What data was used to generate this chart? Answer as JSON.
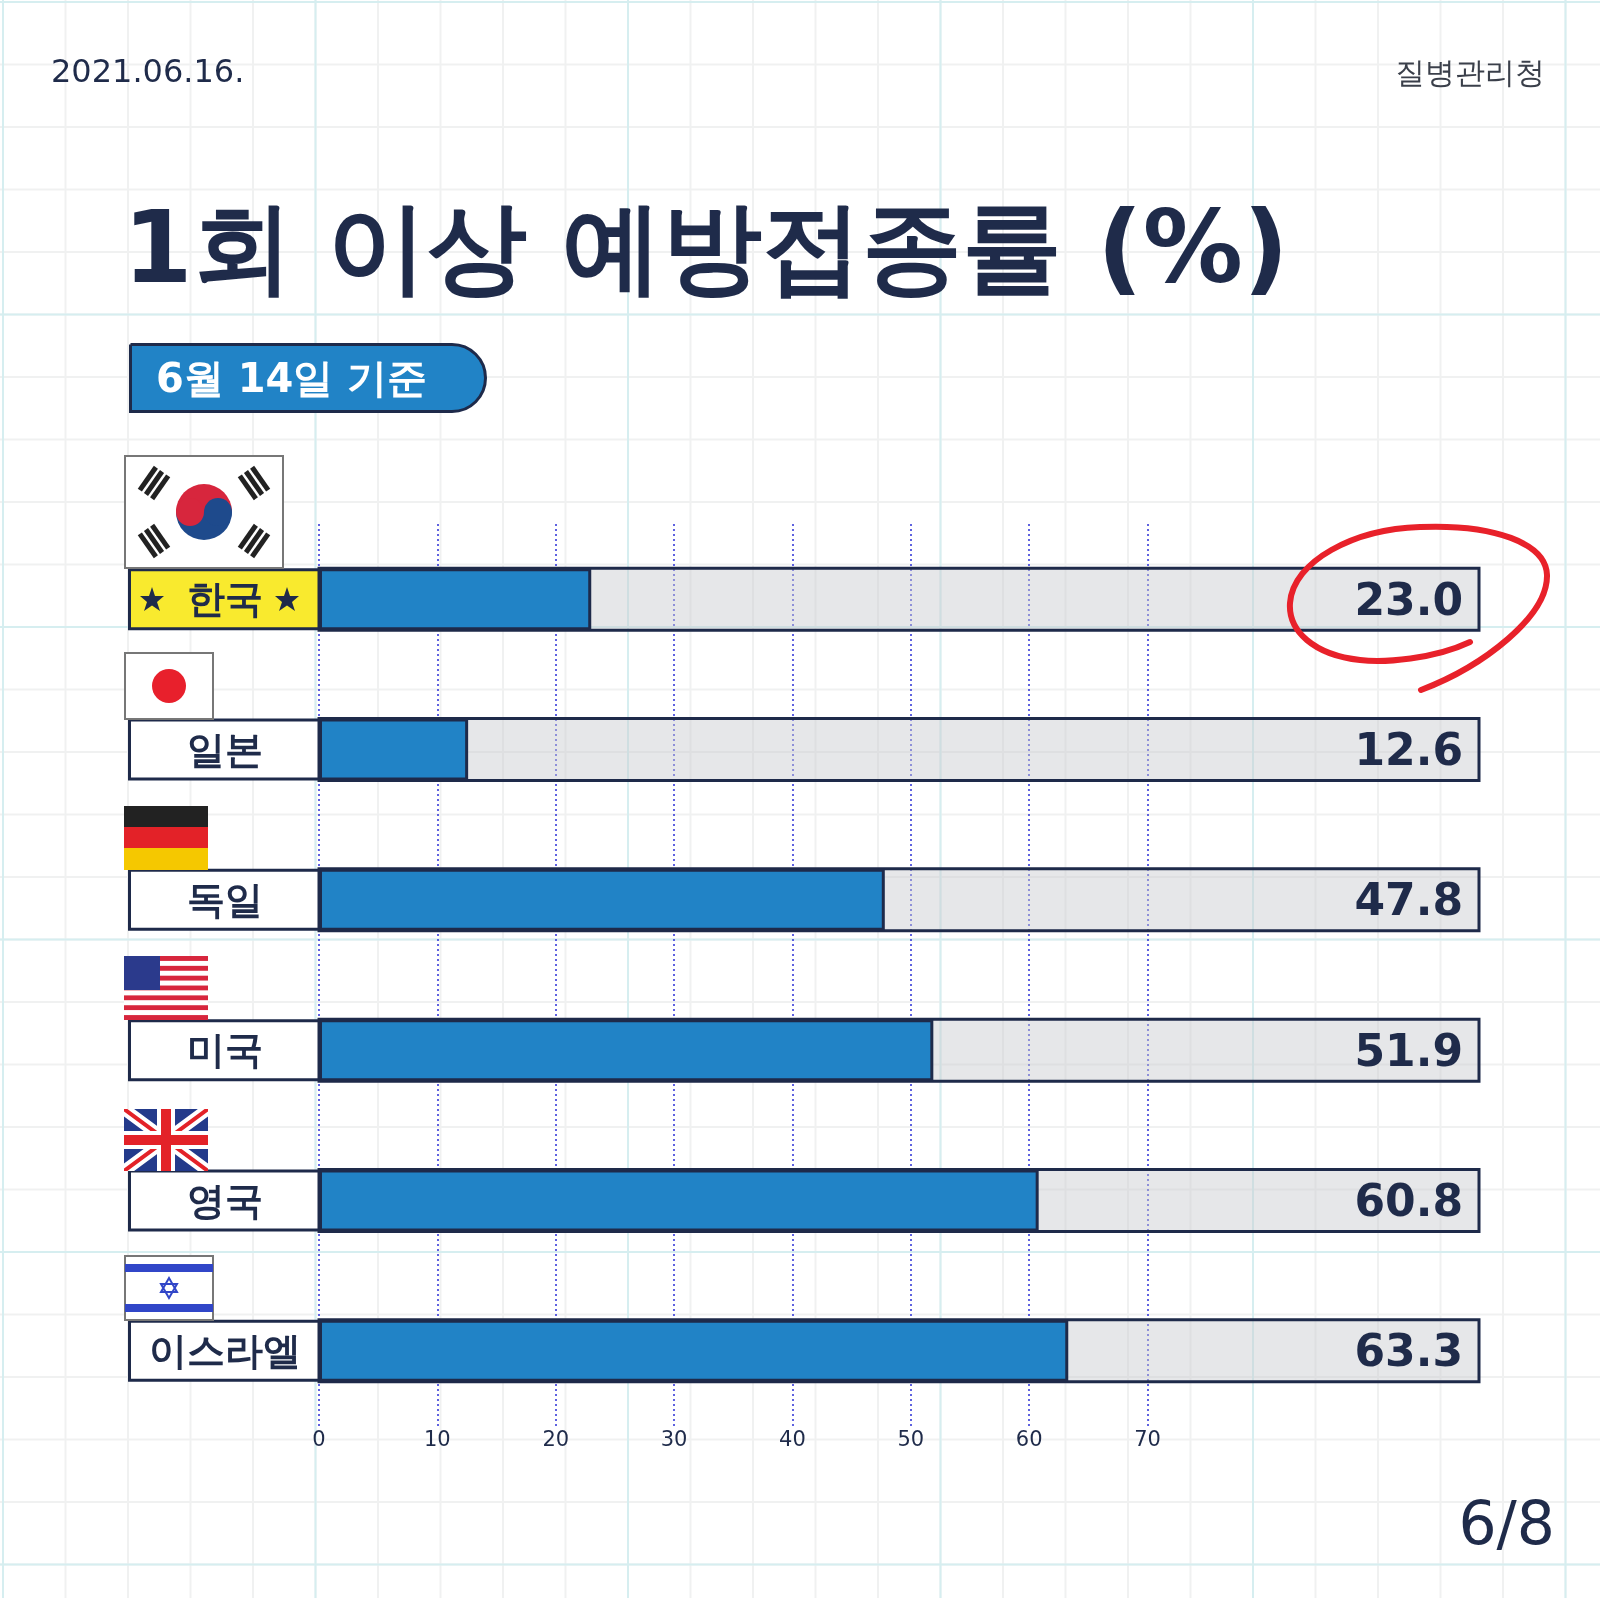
{
  "chart_data": {
    "type": "bar",
    "orientation": "horizontal",
    "title": "1회 이상 예방접종률 (%)",
    "subtitle": "6월 14일 기준",
    "categories": [
      "한국",
      "일본",
      "독일",
      "미국",
      "영국",
      "이스라엘"
    ],
    "values": [
      23.0,
      12.6,
      47.8,
      51.9,
      60.8,
      63.3
    ],
    "value_labels": [
      "23.0",
      "12.6",
      "47.8",
      "51.9",
      "60.8",
      "63.3"
    ],
    "color": "#2183c6",
    "xlim": [
      0,
      98
    ],
    "xticks": [
      0,
      10,
      20,
      30,
      40,
      50,
      60,
      70
    ],
    "grid": "x",
    "annotations": [
      "2021.06.16.",
      "질병관리청",
      "6/8"
    ]
  }
}
